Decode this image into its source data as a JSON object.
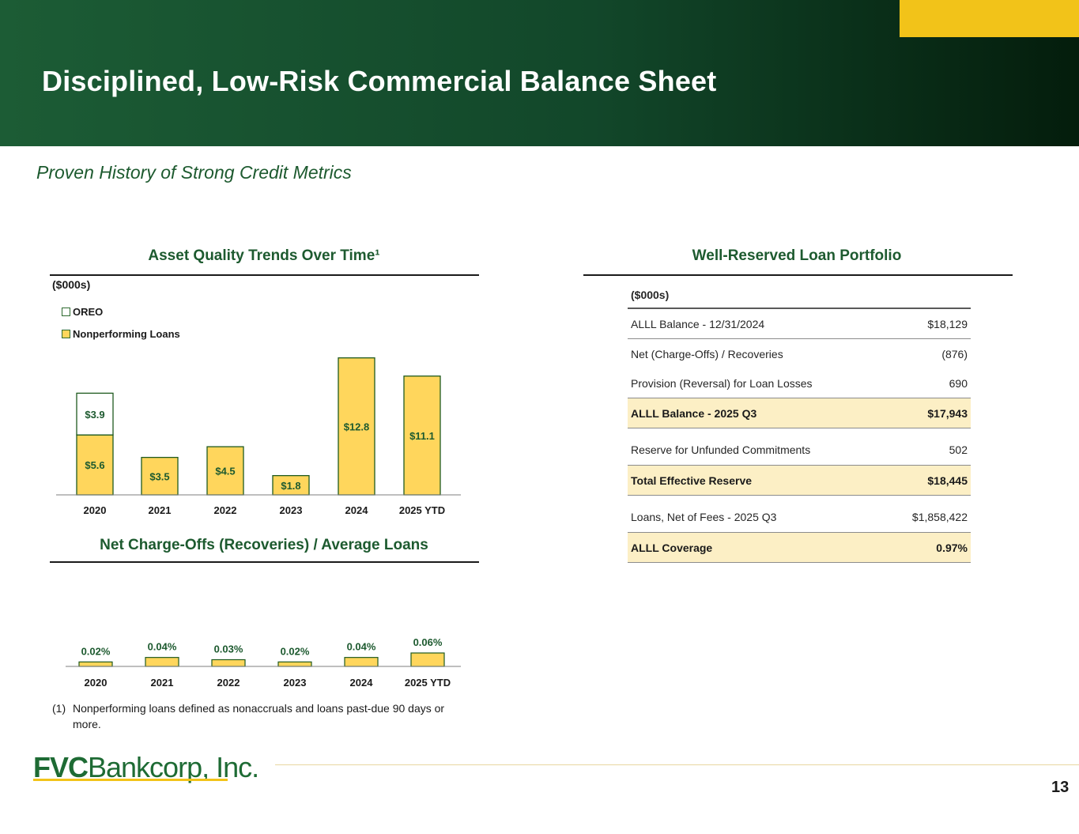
{
  "header": {
    "title": "Disciplined, Low-Risk Commercial Balance Sheet",
    "accent_color": "#f2c319",
    "brand_green": "#1d5a2f"
  },
  "subtitle": "Proven History of Strong Credit Metrics",
  "left": {
    "asset_quality_title": "Asset Quality Trends Over Time¹",
    "units": "($000s)",
    "legend": [
      "OREO",
      "Nonperforming Loans"
    ],
    "nco_title": "Net Charge-Offs (Recoveries) / Average Loans",
    "footnote_num": "(1)",
    "footnote_text": "Nonperforming loans defined as nonaccruals and loans past-due 90 days or more."
  },
  "chart_data": [
    {
      "type": "bar",
      "stacked": true,
      "title": "Asset Quality Trends Over Time¹",
      "units": "($000s)",
      "categories": [
        "2020",
        "2021",
        "2022",
        "2023",
        "2024",
        "2025 YTD"
      ],
      "series": [
        {
          "name": "Nonperforming Loans",
          "values": [
            5.6,
            3.5,
            4.5,
            1.8,
            12.8,
            11.1
          ],
          "labels": [
            "$5.6",
            "$3.5",
            "$4.5",
            "$1.8",
            "$12.8",
            "$11.1"
          ],
          "color": "#ffd65c"
        },
        {
          "name": "OREO",
          "values": [
            3.9,
            0,
            0,
            0,
            0,
            0
          ],
          "labels": [
            "$3.9",
            "",
            "",
            "",
            "",
            ""
          ],
          "color": "#ffffff"
        }
      ],
      "ylim": [
        0,
        13
      ]
    },
    {
      "type": "bar",
      "title": "Net Charge-Offs (Recoveries) / Average Loans",
      "categories": [
        "2020",
        "2021",
        "2022",
        "2023",
        "2024",
        "2025 YTD"
      ],
      "values": [
        0.02,
        0.04,
        0.03,
        0.02,
        0.04,
        0.06
      ],
      "labels": [
        "0.02%",
        "0.04%",
        "0.03%",
        "0.02%",
        "0.04%",
        "0.06%"
      ],
      "color": "#ffd65c"
    }
  ],
  "reserve": {
    "title": "Well-Reserved Loan Portfolio",
    "units": "($000s)",
    "rows": [
      {
        "label": "ALLL Balance - 12/31/2024",
        "value": "$18,129",
        "highlight": false
      },
      {
        "label": "Net (Charge-Offs) / Recoveries",
        "value": "(876)",
        "highlight": false
      },
      {
        "label": "Provision (Reversal) for Loan Losses",
        "value": "690",
        "highlight": false
      },
      {
        "label": "ALLL Balance - 2025 Q3",
        "value": "$17,943",
        "highlight": true
      },
      {
        "label": "Reserve for Unfunded Commitments",
        "value": "502",
        "highlight": false
      },
      {
        "label": "Total Effective Reserve",
        "value": "$18,445",
        "highlight": true
      },
      {
        "label": "Loans, Net of Fees - 2025 Q3",
        "value": "$1,858,422",
        "highlight": false
      },
      {
        "label": "ALLL Coverage",
        "value": "0.97%",
        "highlight": true
      }
    ]
  },
  "footer": {
    "logo_bold": "FVC",
    "logo_rest": "Bankcorp, Inc.",
    "page_number": "13"
  }
}
